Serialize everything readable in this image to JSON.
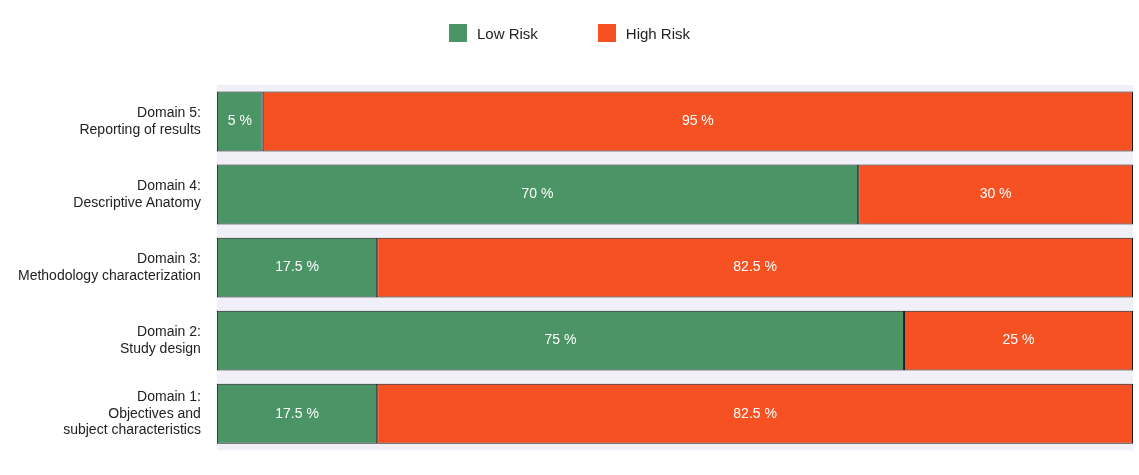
{
  "chart_data": {
    "type": "bar",
    "orientation": "horizontal",
    "stacked": true,
    "categories": [
      "Domain 5:\nReporting of results",
      "Domain 4:\nDescriptive Anatomy",
      "Domain 3:\nMethodology characterization",
      "Domain 2:\nStudy design",
      "Domain 1:\nObjectives and\nsubject characteristics"
    ],
    "series": [
      {
        "name": "Low Risk",
        "color": "#4a9465",
        "values": [
          5,
          70,
          17.5,
          75,
          17.5
        ],
        "value_labels": [
          "5 %",
          "70 %",
          "17.5 %",
          "75 %",
          "17.5 %"
        ]
      },
      {
        "name": "High Risk",
        "color": "#f65123",
        "values": [
          95,
          30,
          82.5,
          25,
          82.5
        ],
        "value_labels": [
          "95 %",
          "30 %",
          "82.5 %",
          "25 %",
          "82.5 %"
        ]
      }
    ],
    "xlim": [
      0,
      100
    ],
    "legend": "top",
    "tick_labels": "y"
  }
}
